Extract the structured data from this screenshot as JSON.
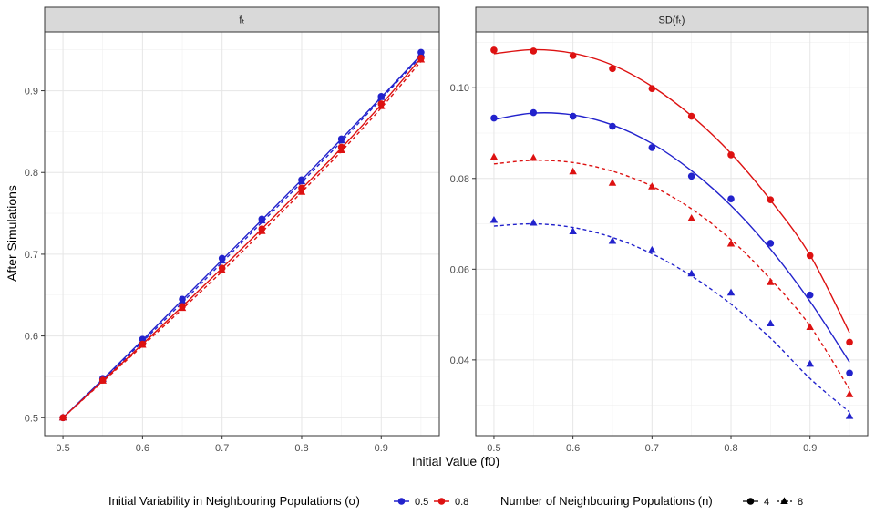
{
  "chart_data": {
    "type": "line",
    "xlabel": "Initial Value (f0)",
    "ylabel": "After Simulations",
    "x_ticks": [
      "0.5",
      "0.6",
      "0.7",
      "0.8",
      "0.9"
    ],
    "legend": {
      "color_title": "Initial Variability in Neighbouring Populations (σ)",
      "color_entries": [
        {
          "label": "0.5",
          "color": "#2222cc"
        },
        {
          "label": "0.8",
          "color": "#dd1111"
        }
      ],
      "shape_title": "Number of Neighbouring Populations (n)",
      "shape_entries": [
        {
          "label": "4",
          "shape": "circle",
          "linetype": "solid"
        },
        {
          "label": "8",
          "shape": "triangle",
          "linetype": "dashed"
        }
      ],
      "position": "bottom"
    },
    "panels": [
      {
        "strip": "f̄ₜ",
        "ylim": [
          0.478,
          0.972
        ],
        "xlim": [
          0.477,
          0.973
        ],
        "y_ticks": [
          0.5,
          0.6,
          0.7,
          0.8,
          0.9
        ],
        "y_tick_labels": [
          "0.5",
          "0.6",
          "0.7",
          "0.8",
          "0.9"
        ],
        "grid": true,
        "series": [
          {
            "sigma": "0.5",
            "n": "4",
            "color": "#2222cc",
            "x": [
              0.5,
              0.55,
              0.6,
              0.65,
              0.7,
              0.75,
              0.8,
              0.85,
              0.9,
              0.95
            ],
            "y": [
              0.5,
              0.548,
              0.596,
              0.645,
              0.695,
              0.743,
              0.791,
              0.841,
              0.893,
              0.947
            ],
            "fit": [
              0.5,
              0.547,
              0.595,
              0.644,
              0.693,
              0.742,
              0.791,
              0.841,
              0.892,
              0.944
            ]
          },
          {
            "sigma": "0.5",
            "n": "8",
            "color": "#2222cc",
            "x": [
              0.5,
              0.55,
              0.6,
              0.65,
              0.7,
              0.75,
              0.8,
              0.85,
              0.9,
              0.95
            ],
            "y": [
              0.5,
              0.547,
              0.594,
              0.643,
              0.692,
              0.741,
              0.789,
              0.839,
              0.892,
              0.945
            ],
            "fit": [
              0.5,
              0.546,
              0.593,
              0.641,
              0.69,
              0.739,
              0.788,
              0.838,
              0.89,
              0.942
            ]
          },
          {
            "sigma": "0.8",
            "n": "4",
            "color": "#dd1111",
            "x": [
              0.5,
              0.55,
              0.6,
              0.65,
              0.7,
              0.75,
              0.8,
              0.85,
              0.9,
              0.95
            ],
            "y": [
              0.5,
              0.546,
              0.59,
              0.636,
              0.683,
              0.731,
              0.781,
              0.831,
              0.884,
              0.94
            ],
            "fit": [
              0.5,
              0.545,
              0.59,
              0.636,
              0.683,
              0.731,
              0.78,
              0.83,
              0.883,
              0.94
            ]
          },
          {
            "sigma": "0.8",
            "n": "8",
            "color": "#dd1111",
            "x": [
              0.5,
              0.55,
              0.6,
              0.65,
              0.7,
              0.75,
              0.8,
              0.85,
              0.9,
              0.95
            ],
            "y": [
              0.5,
              0.545,
              0.589,
              0.634,
              0.68,
              0.728,
              0.776,
              0.827,
              0.881,
              0.938
            ],
            "fit": [
              0.5,
              0.544,
              0.588,
              0.633,
              0.679,
              0.727,
              0.776,
              0.826,
              0.879,
              0.936
            ]
          }
        ]
      },
      {
        "strip": "SD(fₜ)",
        "ylim": [
          0.0233,
          0.1123
        ],
        "xlim": [
          0.477,
          0.973
        ],
        "y_ticks": [
          0.04,
          0.06,
          0.08,
          0.1
        ],
        "y_tick_labels": [
          "0.04",
          "0.06",
          "0.08",
          "0.10"
        ],
        "grid": true,
        "series": [
          {
            "sigma": "0.5",
            "n": "4",
            "color": "#2222cc",
            "x": [
              0.5,
              0.55,
              0.6,
              0.65,
              0.7,
              0.75,
              0.8,
              0.85,
              0.9,
              0.95
            ],
            "y": [
              0.0933,
              0.0945,
              0.0937,
              0.0915,
              0.0868,
              0.0805,
              0.0755,
              0.0657,
              0.0543,
              0.0371
            ],
            "fit": [
              0.093,
              0.0944,
              0.094,
              0.0918,
              0.0877,
              0.0817,
              0.074,
              0.0644,
              0.0529,
              0.0395
            ]
          },
          {
            "sigma": "0.5",
            "n": "8",
            "color": "#2222cc",
            "x": [
              0.5,
              0.55,
              0.6,
              0.65,
              0.7,
              0.75,
              0.8,
              0.85,
              0.9,
              0.95
            ],
            "y": [
              0.0708,
              0.0702,
              0.0683,
              0.0662,
              0.0642,
              0.059,
              0.0548,
              0.048,
              0.0391,
              0.0276
            ],
            "fit": [
              0.0695,
              0.07,
              0.0692,
              0.067,
              0.0634,
              0.0585,
              0.0523,
              0.0448,
              0.0359,
              0.0285
            ]
          },
          {
            "sigma": "0.8",
            "n": "4",
            "color": "#dd1111",
            "x": [
              0.5,
              0.55,
              0.6,
              0.65,
              0.7,
              0.75,
              0.8,
              0.85,
              0.9,
              0.95
            ],
            "y": [
              0.1083,
              0.1081,
              0.1071,
              0.1042,
              0.0998,
              0.0937,
              0.0852,
              0.0753,
              0.063,
              0.0439
            ],
            "fit": [
              0.1075,
              0.1084,
              0.1076,
              0.105,
              0.1003,
              0.0938,
              0.0855,
              0.0752,
              0.0631,
              0.046
            ]
          },
          {
            "sigma": "0.8",
            "n": "8",
            "color": "#dd1111",
            "x": [
              0.5,
              0.55,
              0.6,
              0.65,
              0.7,
              0.75,
              0.8,
              0.85,
              0.9,
              0.95
            ],
            "y": [
              0.0847,
              0.0845,
              0.0815,
              0.079,
              0.0782,
              0.0712,
              0.0656,
              0.0571,
              0.0472,
              0.0324
            ],
            "fit": [
              0.0832,
              0.084,
              0.0835,
              0.0816,
              0.0783,
              0.0733,
              0.0665,
              0.0578,
              0.0475,
              0.0335
            ]
          }
        ]
      }
    ]
  }
}
